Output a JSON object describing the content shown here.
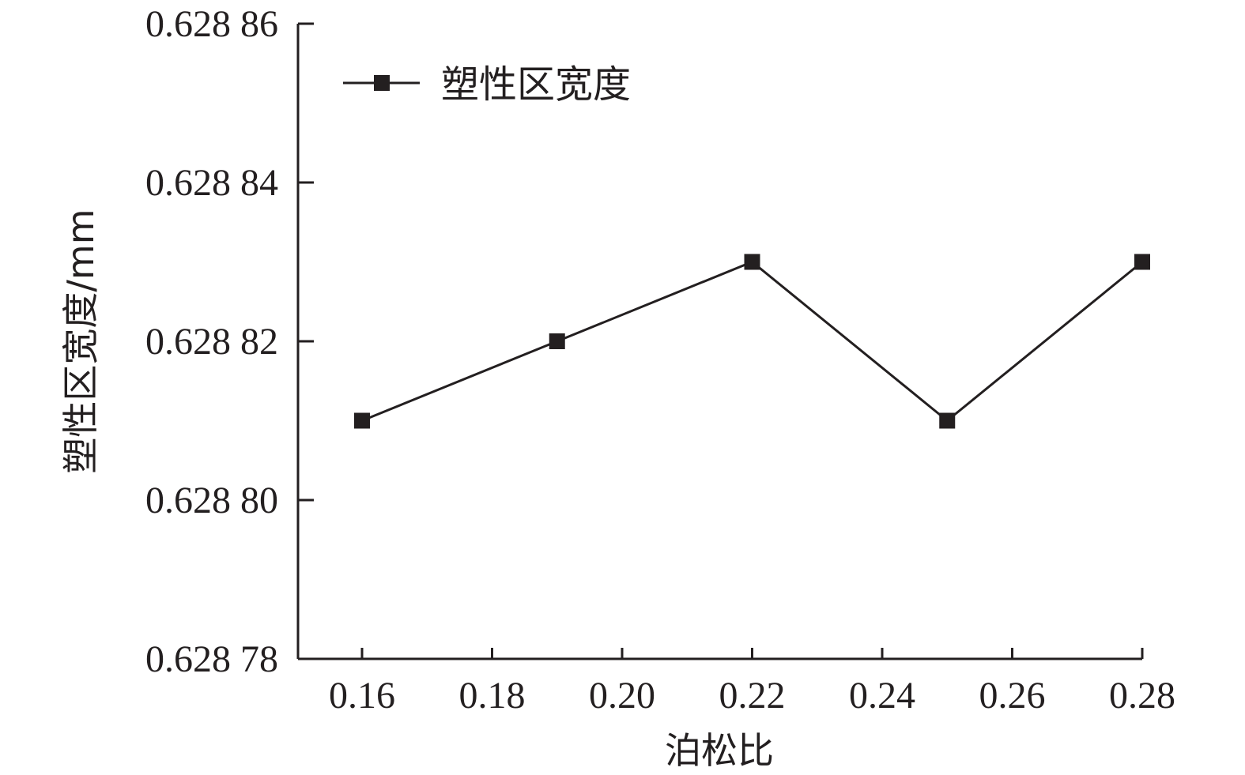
{
  "chart_data": {
    "type": "line",
    "xlabel": "泊松比",
    "ylabel": "塑性区宽度/mm",
    "xlim": [
      0.15,
      0.28
    ],
    "ylim": [
      0.62878,
      0.62886
    ],
    "x_ticks": [
      0.16,
      0.18,
      0.2,
      0.22,
      0.24,
      0.26,
      0.28
    ],
    "x_tick_labels": [
      "0.16",
      "0.18",
      "0.20",
      "0.22",
      "0.24",
      "0.26",
      "0.28"
    ],
    "y_ticks": [
      0.62878,
      0.6288,
      0.62882,
      0.62884,
      0.62886
    ],
    "y_tick_labels": [
      "0.628 78",
      "0.628 80",
      "0.628 82",
      "0.628 84",
      "0.628 86"
    ],
    "grid": false,
    "legend_position": "top-left",
    "series": [
      {
        "name": "塑性区宽度",
        "marker": "square",
        "color": "#231f20",
        "points": [
          {
            "x": 0.16,
            "y": 0.62881
          },
          {
            "x": 0.19,
            "y": 0.62882
          },
          {
            "x": 0.22,
            "y": 0.62883
          },
          {
            "x": 0.25,
            "y": 0.62881
          },
          {
            "x": 0.28,
            "y": 0.62883
          }
        ]
      }
    ]
  }
}
